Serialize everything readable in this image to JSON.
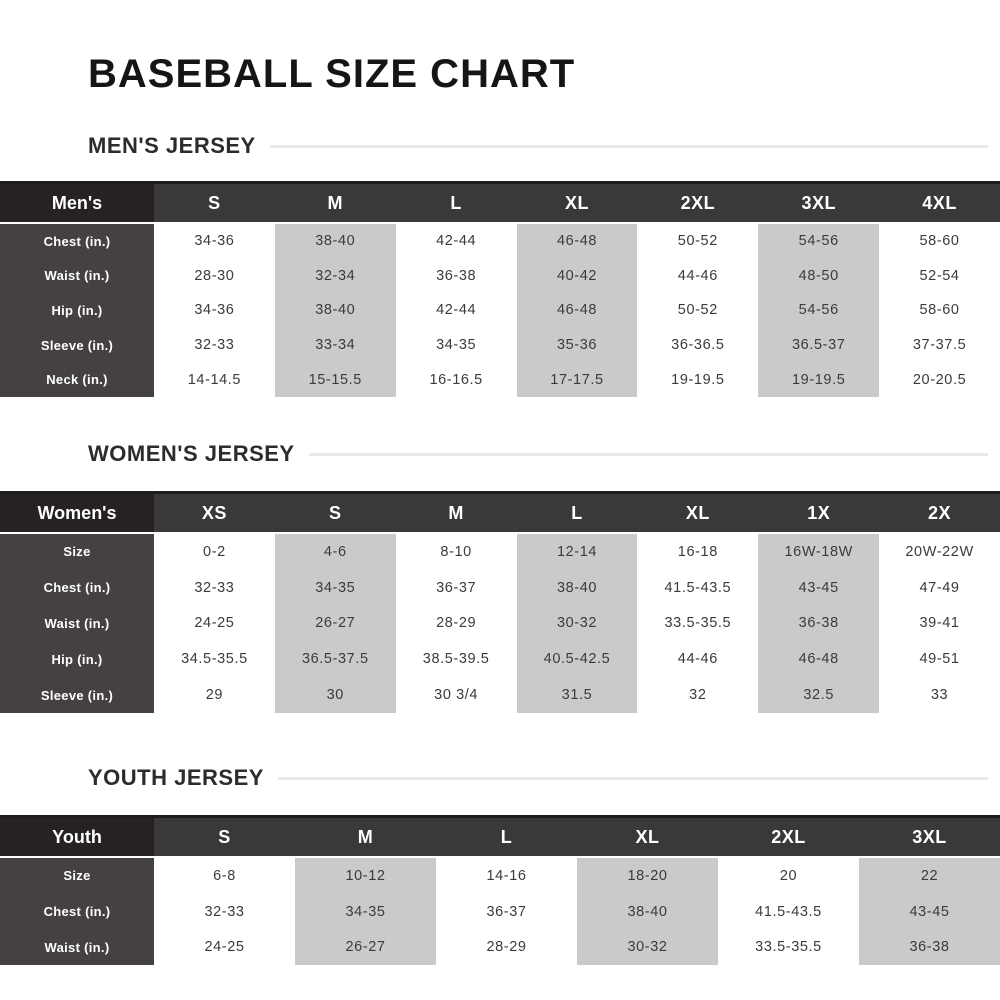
{
  "page": {
    "title": "BASEBALL SIZE CHART"
  },
  "colors": {
    "header_corner_bg": "#262223",
    "header_bg": "#3b383a",
    "row_label_bg": "#454142",
    "shaded_cell_bg": "#cbcaca",
    "divider_line": "#e9e9e9",
    "header_text": "#ffffff",
    "cell_text": "#3c3a3b",
    "title_text": "#151515"
  },
  "sections": [
    {
      "id": "mens",
      "heading": "MEN'S JERSEY",
      "corner": "Men's",
      "columns": [
        "S",
        "M",
        "L",
        "XL",
        "2XL",
        "3XL",
        "4XL"
      ],
      "shaded_columns": [
        1,
        3,
        5
      ],
      "rows": [
        {
          "label": "Chest (in.)",
          "values": [
            "34-36",
            "38-40",
            "42-44",
            "46-48",
            "50-52",
            "54-56",
            "58-60"
          ]
        },
        {
          "label": "Waist (in.)",
          "values": [
            "28-30",
            "32-34",
            "36-38",
            "40-42",
            "44-46",
            "48-50",
            "52-54"
          ]
        },
        {
          "label": "Hip (in.)",
          "values": [
            "34-36",
            "38-40",
            "42-44",
            "46-48",
            "50-52",
            "54-56",
            "58-60"
          ]
        },
        {
          "label": "Sleeve (in.)",
          "values": [
            "32-33",
            "33-34",
            "34-35",
            "35-36",
            "36-36.5",
            "36.5-37",
            "37-37.5"
          ]
        },
        {
          "label": "Neck (in.)",
          "values": [
            "14-14.5",
            "15-15.5",
            "16-16.5",
            "17-17.5",
            "19-19.5",
            "19-19.5",
            "20-20.5"
          ]
        }
      ]
    },
    {
      "id": "womens",
      "heading": "WOMEN'S JERSEY",
      "corner": "Women's",
      "columns": [
        "XS",
        "S",
        "M",
        "L",
        "XL",
        "1X",
        "2X"
      ],
      "shaded_columns": [
        1,
        3,
        5
      ],
      "rows": [
        {
          "label": "Size",
          "values": [
            "0-2",
            "4-6",
            "8-10",
            "12-14",
            "16-18",
            "16W-18W",
            "20W-22W"
          ]
        },
        {
          "label": "Chest (in.)",
          "values": [
            "32-33",
            "34-35",
            "36-37",
            "38-40",
            "41.5-43.5",
            "43-45",
            "47-49"
          ]
        },
        {
          "label": "Waist (in.)",
          "values": [
            "24-25",
            "26-27",
            "28-29",
            "30-32",
            "33.5-35.5",
            "36-38",
            "39-41"
          ]
        },
        {
          "label": "Hip (in.)",
          "values": [
            "34.5-35.5",
            "36.5-37.5",
            "38.5-39.5",
            "40.5-42.5",
            "44-46",
            "46-48",
            "49-51"
          ]
        },
        {
          "label": "Sleeve (in.)",
          "values": [
            "29",
            "30",
            "30 3/4",
            "31.5",
            "32",
            "32.5",
            "33"
          ]
        }
      ]
    },
    {
      "id": "youth",
      "heading": "YOUTH JERSEY",
      "corner": "Youth",
      "columns": [
        "S",
        "M",
        "L",
        "XL",
        "2XL",
        "3XL"
      ],
      "shaded_columns": [
        1,
        3,
        5
      ],
      "rows": [
        {
          "label": "Size",
          "values": [
            "6-8",
            "10-12",
            "14-16",
            "18-20",
            "20",
            "22"
          ]
        },
        {
          "label": "Chest (in.)",
          "values": [
            "32-33",
            "34-35",
            "36-37",
            "38-40",
            "41.5-43.5",
            "43-45"
          ]
        },
        {
          "label": "Waist (in.)",
          "values": [
            "24-25",
            "26-27",
            "28-29",
            "30-32",
            "33.5-35.5",
            "36-38"
          ]
        }
      ]
    }
  ]
}
